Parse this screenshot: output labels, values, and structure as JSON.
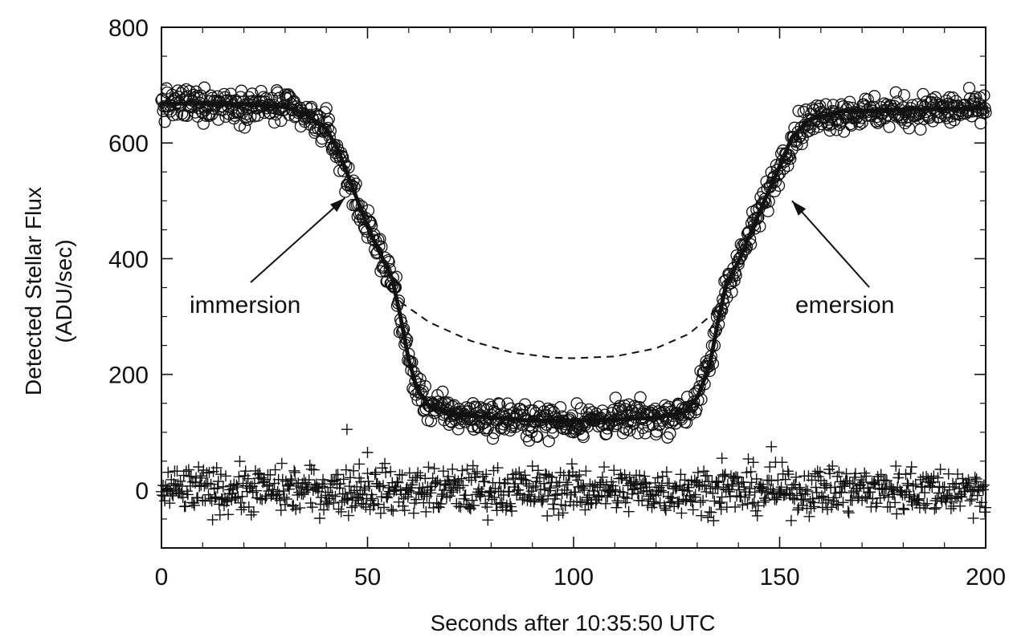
{
  "chart_data": {
    "type": "scatter",
    "title": "",
    "xlabel": "Seconds after 10:35:50 UTC",
    "ylabel_lines": [
      "Detected Stellar Flux",
      "(ADU/sec)"
    ],
    "xlim": [
      0,
      200
    ],
    "ylim": [
      -100,
      800
    ],
    "xticks": [
      0,
      50,
      100,
      150,
      200
    ],
    "yticks": [
      0,
      200,
      400,
      600,
      800
    ],
    "x_minor_step": 10,
    "y_minor_step": 50,
    "grid": false,
    "legend": "none",
    "annotations": [
      {
        "text": "immersion",
        "arrow_to": [
          44.5,
          505
        ]
      },
      {
        "text": "emersion",
        "arrow_to": [
          153,
          500
        ]
      }
    ],
    "series": [
      {
        "marker": "open-circle",
        "description_points": [
          [
            0,
            665
          ],
          [
            10,
            668
          ],
          [
            20,
            666
          ],
          [
            30,
            660
          ],
          [
            35,
            645
          ],
          [
            40,
            625
          ],
          [
            43,
            580
          ],
          [
            46,
            525
          ],
          [
            50,
            455
          ],
          [
            53,
            410
          ],
          [
            56,
            365
          ],
          [
            58,
            300
          ],
          [
            60,
            225
          ],
          [
            62,
            175
          ],
          [
            65,
            145
          ],
          [
            70,
            132
          ],
          [
            80,
            125
          ],
          [
            90,
            120
          ],
          [
            100,
            120
          ],
          [
            110,
            122
          ],
          [
            120,
            125
          ],
          [
            127,
            135
          ],
          [
            130,
            160
          ],
          [
            133,
            215
          ],
          [
            135,
            290
          ],
          [
            137,
            355
          ],
          [
            140,
            395
          ],
          [
            143,
            445
          ],
          [
            146,
            495
          ],
          [
            150,
            560
          ],
          [
            153,
            610
          ],
          [
            157,
            640
          ],
          [
            165,
            652
          ],
          [
            180,
            655
          ],
          [
            190,
            657
          ],
          [
            200,
            658
          ]
        ],
        "noise_sigma": 14,
        "sample_step": 0.2
      },
      {
        "marker": "solid-line-fit",
        "points": [
          [
            0,
            668
          ],
          [
            10,
            668
          ],
          [
            20,
            667
          ],
          [
            30,
            662
          ],
          [
            35,
            650
          ],
          [
            40,
            625
          ],
          [
            43,
            585
          ],
          [
            46,
            530
          ],
          [
            50,
            455
          ],
          [
            53,
            410
          ],
          [
            56,
            365
          ],
          [
            58,
            300
          ],
          [
            60,
            225
          ],
          [
            62,
            175
          ],
          [
            65,
            145
          ],
          [
            70,
            132
          ],
          [
            80,
            125
          ],
          [
            90,
            120
          ],
          [
            100,
            120
          ],
          [
            110,
            122
          ],
          [
            120,
            125
          ],
          [
            127,
            135
          ],
          [
            130,
            160
          ],
          [
            133,
            215
          ],
          [
            135,
            290
          ],
          [
            137,
            355
          ],
          [
            140,
            395
          ],
          [
            143,
            445
          ],
          [
            146,
            495
          ],
          [
            150,
            560
          ],
          [
            153,
            610
          ],
          [
            157,
            640
          ],
          [
            165,
            655
          ],
          [
            180,
            658
          ],
          [
            200,
            660
          ]
        ]
      },
      {
        "marker": "dashed-line",
        "points": [
          [
            58,
            325
          ],
          [
            65,
            290
          ],
          [
            75,
            258
          ],
          [
            85,
            238
          ],
          [
            95,
            229
          ],
          [
            100,
            228
          ],
          [
            110,
            231
          ],
          [
            120,
            245
          ],
          [
            128,
            270
          ],
          [
            133,
            300
          ],
          [
            135,
            320
          ]
        ]
      },
      {
        "marker": "plus",
        "residual_mean": 0,
        "noise_sigma": 20,
        "sample_step": 0.2,
        "outliers": [
          [
            45,
            105
          ],
          [
            50,
            65
          ],
          [
            48,
            45
          ],
          [
            148,
            75
          ],
          [
            136,
            55
          ],
          [
            182,
            40
          ]
        ]
      }
    ]
  }
}
